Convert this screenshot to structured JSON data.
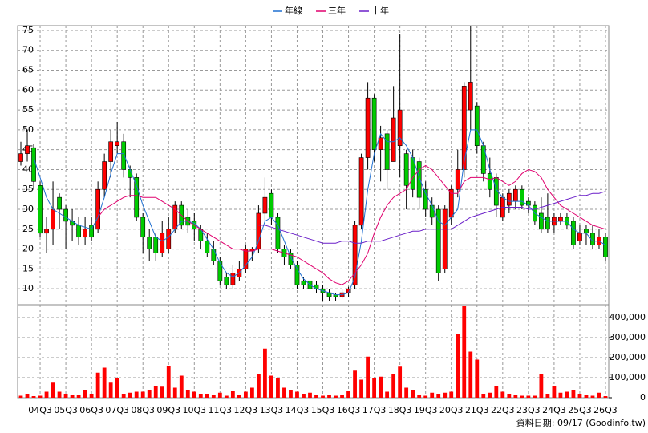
{
  "chart_data": [
    {
      "type": "candlestick",
      "up_color": "#ff0000",
      "down_color": "#00cc00",
      "open": [
        42,
        44,
        45.5,
        36,
        24,
        25,
        33,
        30,
        27,
        26,
        23,
        26,
        25,
        35,
        42,
        46,
        47,
        40,
        38,
        28,
        23,
        23,
        19,
        20,
        25,
        31,
        28,
        27,
        25,
        22,
        20,
        17,
        13,
        11,
        13,
        15,
        19.5,
        20,
        29,
        34,
        28,
        20,
        19,
        16,
        12,
        12,
        11,
        10,
        9,
        8.5,
        8,
        9,
        11,
        26,
        43,
        58,
        45,
        49,
        42,
        46,
        44,
        43,
        42,
        35,
        31,
        30,
        15,
        28,
        35,
        40,
        55,
        56,
        46,
        39,
        38,
        28,
        31,
        32,
        35,
        32,
        31,
        29,
        28,
        26,
        27,
        28,
        27,
        22,
        25,
        24,
        21,
        23
      ],
      "high": [
        47,
        50,
        46.5,
        37,
        28,
        37,
        34,
        31,
        30,
        28,
        28,
        28,
        37,
        44,
        50,
        52,
        49,
        41,
        39,
        29,
        25,
        24,
        27,
        28,
        32,
        32,
        30,
        29,
        26,
        24,
        22,
        18,
        14,
        16,
        17,
        21,
        20.5,
        31,
        38,
        35,
        29,
        21,
        20,
        17,
        13,
        13,
        12,
        11,
        10,
        9,
        10,
        10.5,
        27,
        44,
        62,
        59,
        51,
        50,
        61,
        74,
        45,
        45,
        43,
        37,
        33,
        31,
        31,
        36,
        45,
        62,
        76,
        57,
        47,
        43,
        39,
        34,
        35,
        36,
        36,
        33,
        32,
        33,
        34,
        29,
        29,
        29,
        28,
        26,
        26,
        26,
        25,
        24
      ],
      "low": [
        41,
        42,
        35,
        23,
        19,
        21,
        25,
        20,
        22,
        21,
        21,
        22,
        24,
        33,
        38,
        44,
        38,
        33,
        27,
        19,
        17,
        17,
        18,
        19,
        24,
        25,
        24,
        22,
        20,
        18,
        16,
        11,
        10,
        10,
        12,
        14,
        17,
        19,
        27,
        26,
        19,
        16,
        15,
        10,
        10,
        9,
        9,
        7,
        7,
        7,
        7.5,
        8,
        10,
        25,
        40,
        42,
        37,
        35,
        42,
        38,
        30,
        33,
        30,
        28,
        26,
        12,
        14,
        26,
        33,
        38,
        50,
        44,
        37,
        33,
        28,
        27,
        29,
        30,
        30,
        29,
        26,
        24,
        24,
        24,
        26,
        25,
        20,
        21,
        21,
        20,
        20,
        17
      ],
      "close": [
        44,
        46,
        37,
        24,
        25,
        30,
        30,
        27,
        26,
        23,
        25,
        23,
        35,
        42,
        47,
        47,
        40,
        38,
        28,
        23,
        20,
        19,
        24,
        25,
        31,
        26,
        26,
        25,
        22,
        19,
        17,
        12,
        11,
        14,
        15,
        20,
        20,
        29,
        33,
        28,
        20,
        18,
        16,
        11,
        11,
        10,
        10,
        9,
        8,
        8,
        9,
        10,
        26,
        43,
        58,
        45,
        48,
        40,
        53,
        55,
        36,
        35,
        33,
        30,
        28,
        14,
        30,
        35,
        40,
        61,
        62,
        46,
        39,
        35,
        31,
        33,
        34,
        35,
        31,
        31,
        27,
        25,
        25,
        28,
        28,
        26,
        21,
        24,
        24,
        21,
        23,
        18
      ],
      "series": [
        {
          "name": "年線",
          "color": "#1f6fd1",
          "values": [
            null,
            null,
            43,
            38,
            33,
            30,
            29,
            28,
            27,
            26,
            25.5,
            25,
            28,
            33,
            39,
            44,
            44,
            40,
            36,
            31,
            27,
            23,
            22,
            23,
            25,
            27,
            27,
            26.5,
            25,
            22.5,
            20,
            16.5,
            14,
            13,
            14,
            16,
            18,
            22,
            27,
            28,
            26,
            22,
            18,
            15,
            12.5,
            11,
            10,
            9.5,
            9,
            8.5,
            8.5,
            9,
            13,
            22,
            35,
            44,
            49,
            47,
            47,
            48,
            46,
            43,
            38,
            34,
            31,
            27,
            26,
            28,
            30,
            42,
            50,
            50,
            46,
            40,
            35,
            33,
            32,
            32,
            32,
            31,
            29,
            28,
            27,
            27,
            27,
            27,
            25,
            24,
            24,
            22,
            22,
            21
          ]
        },
        {
          "name": "三年",
          "color": "#e0006e",
          "values": [
            null,
            null,
            null,
            null,
            null,
            null,
            null,
            null,
            null,
            null,
            null,
            null,
            28,
            30,
            31,
            32,
            33,
            33.5,
            33.5,
            33,
            33,
            33,
            32,
            31,
            30,
            28.5,
            27,
            26,
            25,
            24,
            23,
            22,
            21,
            20,
            20,
            19.5,
            19.5,
            20,
            20,
            20,
            19.5,
            19,
            18.5,
            18,
            17,
            16,
            15,
            14,
            12.5,
            11.5,
            11,
            12,
            14,
            16,
            19,
            24,
            28,
            31,
            33,
            34,
            35,
            38,
            40,
            41,
            40,
            38,
            36,
            34,
            34,
            37,
            38,
            38,
            38,
            37.5,
            38,
            37,
            36,
            37,
            39,
            40,
            39.5,
            38,
            35,
            33,
            31,
            30,
            29,
            28,
            27,
            26,
            25.5,
            25
          ]
        },
        {
          "name": "十年",
          "color": "#6a1fc9",
          "values": [
            null,
            null,
            null,
            null,
            null,
            null,
            null,
            null,
            null,
            null,
            null,
            null,
            null,
            null,
            null,
            null,
            null,
            null,
            null,
            null,
            null,
            null,
            null,
            null,
            null,
            null,
            null,
            null,
            null,
            null,
            null,
            null,
            null,
            null,
            null,
            null,
            null,
            26,
            26,
            25.5,
            25,
            24.5,
            24,
            23.5,
            23,
            22.5,
            22,
            21.5,
            21.5,
            21.5,
            22,
            22,
            21.5,
            21.5,
            22,
            22,
            22,
            22.5,
            23,
            23.5,
            24,
            24.5,
            24.5,
            25,
            25,
            25,
            25,
            25,
            26,
            27,
            28,
            28.5,
            29,
            29.5,
            30,
            30.5,
            30.5,
            30.5,
            30.5,
            30,
            30,
            30.5,
            31,
            31.5,
            32,
            32.5,
            33,
            33.5,
            33.5,
            34,
            34,
            34.5
          ]
        }
      ],
      "ylim": [
        6,
        76.2
      ],
      "yticks": [
        10,
        15,
        20,
        25,
        30,
        35,
        40,
        45,
        50,
        55,
        60,
        65,
        70,
        75
      ],
      "grid": true
    },
    {
      "type": "bar",
      "color": "#ff0000",
      "categories": [
        null,
        null,
        null,
        "04Q3",
        null,
        null,
        null,
        "05Q3",
        null,
        null,
        null,
        "06Q3",
        null,
        null,
        null,
        "07Q3",
        null,
        null,
        null,
        "08Q3",
        null,
        null,
        null,
        "09Q3",
        null,
        null,
        null,
        "10Q3",
        null,
        null,
        null,
        "11Q3",
        null,
        null,
        null,
        "12Q3",
        null,
        null,
        null,
        "13Q3",
        null,
        null,
        null,
        "14Q3",
        null,
        null,
        null,
        "15Q3",
        null,
        null,
        null,
        "16Q3",
        null,
        null,
        null,
        "17Q3",
        null,
        null,
        null,
        "18Q3",
        null,
        null,
        null,
        "19Q3",
        null,
        null,
        null,
        "20Q3",
        null,
        null,
        null,
        "21Q3",
        null,
        null,
        null,
        "22Q3",
        null,
        null,
        null,
        "23Q3",
        null,
        null,
        null,
        "24Q3",
        null,
        null,
        null,
        "25Q3",
        null,
        null,
        null,
        "26Q3"
      ],
      "values": [
        10000,
        20000,
        8000,
        10000,
        30000,
        75000,
        30000,
        20000,
        15000,
        15000,
        40000,
        20000,
        125000,
        150000,
        75000,
        100000,
        20000,
        25000,
        30000,
        30000,
        40000,
        60000,
        55000,
        160000,
        50000,
        110000,
        40000,
        30000,
        20000,
        20000,
        15000,
        25000,
        10000,
        35000,
        15000,
        30000,
        50000,
        120000,
        245000,
        110000,
        100000,
        50000,
        40000,
        30000,
        20000,
        25000,
        15000,
        10000,
        15000,
        10000,
        15000,
        35000,
        135000,
        90000,
        205000,
        100000,
        105000,
        30000,
        120000,
        155000,
        50000,
        40000,
        15000,
        10000,
        25000,
        20000,
        25000,
        30000,
        320000,
        460000,
        230000,
        190000,
        20000,
        25000,
        60000,
        30000,
        20000,
        15000,
        10000,
        10000,
        10000,
        120000,
        20000,
        60000,
        25000,
        30000,
        40000,
        20000,
        15000,
        10000,
        25000,
        8000
      ],
      "ylim": [
        0,
        464000
      ],
      "yticks": [
        0,
        {
          "value": 100000,
          "label": "100,000"
        },
        {
          "value": 200000,
          "label": "200,000"
        },
        {
          "value": 300000,
          "label": "300,000"
        },
        {
          "value": 400000,
          "label": "400,000"
        }
      ],
      "grid": true,
      "source": "資料日期: 09/17  (Goodinfo.tw)"
    }
  ]
}
